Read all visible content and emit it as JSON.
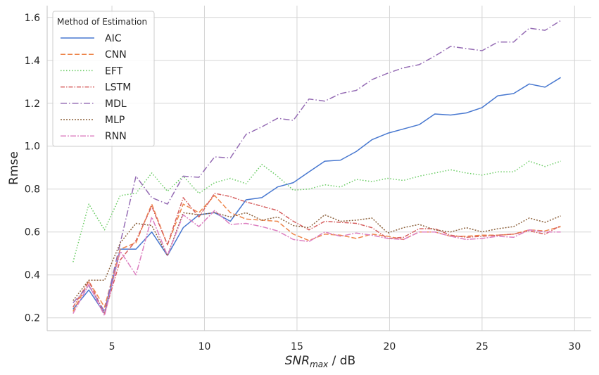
{
  "chart_data": {
    "type": "line",
    "xlabel_main": "SNR",
    "xlabel_sub": "max",
    "xlabel_unit": " / dB",
    "ylabel": "Rmse",
    "xlim": [
      1.5,
      30.9
    ],
    "ylim": [
      0.14,
      1.655
    ],
    "xticks": [
      5,
      10,
      15,
      20,
      25,
      30
    ],
    "yticks": [
      0.2,
      0.4,
      0.6,
      0.8,
      1.0,
      1.2,
      1.4,
      1.6
    ],
    "ytick_labels": [
      "0.2",
      "0.4",
      "0.6",
      "0.8",
      "1.0",
      "1.2",
      "1.4",
      "1.6"
    ],
    "grid": true,
    "legend": {
      "title": "Method of Estimation",
      "placement": "top-left"
    },
    "x": [
      2.9,
      3.75,
      4.6,
      5.45,
      6.3,
      7.15,
      8.0,
      8.85,
      9.7,
      10.55,
      11.4,
      12.25,
      13.1,
      13.95,
      14.8,
      15.65,
      16.5,
      17.35,
      18.2,
      19.05,
      19.9,
      20.75,
      21.6,
      22.45,
      23.3,
      24.15,
      25.0,
      25.85,
      26.7,
      27.55,
      28.4,
      29.25
    ],
    "series": [
      {
        "name": "AIC",
        "color": "#4878d0",
        "dash": "",
        "values": [
          0.24,
          0.33,
          0.22,
          0.52,
          0.52,
          0.6,
          0.49,
          0.62,
          0.68,
          0.69,
          0.65,
          0.75,
          0.76,
          0.81,
          0.83,
          0.88,
          0.93,
          0.935,
          0.975,
          1.03,
          1.06,
          1.08,
          1.1,
          1.15,
          1.145,
          1.155,
          1.18,
          1.235,
          1.245,
          1.29,
          1.275,
          1.32
        ]
      },
      {
        "name": "CNN",
        "color": "#ee854a",
        "dash": "7,3",
        "values": [
          0.23,
          0.37,
          0.25,
          0.52,
          0.55,
          0.73,
          0.54,
          0.73,
          0.69,
          0.77,
          0.69,
          0.66,
          0.655,
          0.65,
          0.59,
          0.56,
          0.59,
          0.585,
          0.57,
          0.59,
          0.58,
          0.565,
          0.6,
          0.6,
          0.58,
          0.58,
          0.585,
          0.585,
          0.59,
          0.61,
          0.605,
          0.625
        ]
      },
      {
        "name": "EFT",
        "color": "#6acc64",
        "dash": "1.5,2.5",
        "values": [
          0.46,
          0.73,
          0.61,
          0.77,
          0.78,
          0.875,
          0.79,
          0.86,
          0.78,
          0.83,
          0.85,
          0.825,
          0.915,
          0.86,
          0.795,
          0.8,
          0.82,
          0.81,
          0.845,
          0.835,
          0.85,
          0.84,
          0.86,
          0.875,
          0.89,
          0.875,
          0.865,
          0.88,
          0.88,
          0.93,
          0.905,
          0.93
        ]
      },
      {
        "name": "LSTM",
        "color": "#d65f5f",
        "dash": "6,2,1.5,2",
        "values": [
          0.25,
          0.37,
          0.22,
          0.47,
          0.56,
          0.72,
          0.54,
          0.76,
          0.67,
          0.78,
          0.765,
          0.74,
          0.72,
          0.7,
          0.65,
          0.61,
          0.65,
          0.645,
          0.64,
          0.62,
          0.57,
          0.575,
          0.615,
          0.615,
          0.585,
          0.575,
          0.58,
          0.585,
          0.59,
          0.605,
          0.59,
          0.63
        ]
      },
      {
        "name": "MDL",
        "color": "#956cb4",
        "dash": "9,3,1.5,3",
        "values": [
          0.27,
          0.35,
          0.23,
          0.55,
          0.86,
          0.76,
          0.73,
          0.86,
          0.855,
          0.95,
          0.945,
          1.055,
          1.09,
          1.13,
          1.12,
          1.22,
          1.21,
          1.245,
          1.26,
          1.31,
          1.34,
          1.365,
          1.38,
          1.42,
          1.465,
          1.455,
          1.445,
          1.485,
          1.485,
          1.55,
          1.54,
          1.585
        ]
      },
      {
        "name": "MLP",
        "color": "#8c613c",
        "dash": "2,2",
        "values": [
          0.28,
          0.375,
          0.375,
          0.55,
          0.64,
          0.63,
          0.49,
          0.69,
          0.68,
          0.69,
          0.67,
          0.69,
          0.655,
          0.67,
          0.63,
          0.62,
          0.68,
          0.65,
          0.655,
          0.665,
          0.595,
          0.62,
          0.635,
          0.61,
          0.6,
          0.62,
          0.6,
          0.615,
          0.625,
          0.665,
          0.645,
          0.675
        ]
      },
      {
        "name": "RNN",
        "color": "#dc7ec0",
        "dash": "8,2,2,2",
        "values": [
          0.22,
          0.355,
          0.21,
          0.51,
          0.4,
          0.67,
          0.49,
          0.68,
          0.625,
          0.7,
          0.635,
          0.64,
          0.625,
          0.605,
          0.565,
          0.555,
          0.6,
          0.58,
          0.595,
          0.585,
          0.57,
          0.565,
          0.6,
          0.6,
          0.58,
          0.565,
          0.57,
          0.58,
          0.575,
          0.61,
          0.6,
          0.6
        ]
      }
    ]
  }
}
